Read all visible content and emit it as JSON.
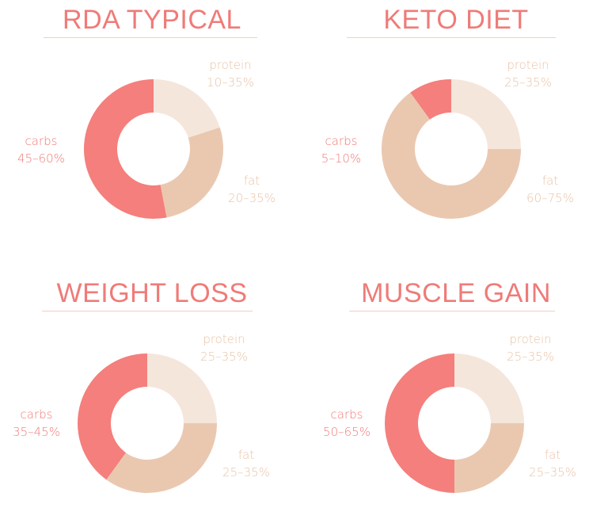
{
  "colors": {
    "title": "#ef7b78",
    "rule": "#f4cdbf",
    "protein": "#f5e6dc",
    "fat": "#eac8b0",
    "carbs": "#f47f7c",
    "protein_text": "#e9c3a6",
    "fat_text": "#e9c3a6",
    "carbs_text": "#ef7b78"
  },
  "chart_data": [
    {
      "type": "pie",
      "title": "RDA TYPICAL",
      "labels": [
        "protein",
        "fat",
        "carbs"
      ],
      "ranges": [
        "10–35%",
        "20–35%",
        "45–60%"
      ],
      "values": [
        20,
        27,
        53
      ]
    },
    {
      "type": "pie",
      "title": "KETO DIET",
      "labels": [
        "protein",
        "fat",
        "carbs"
      ],
      "ranges": [
        "25–35%",
        "60–75%",
        "5–10%"
      ],
      "values": [
        25,
        65,
        10
      ]
    },
    {
      "type": "pie",
      "title": "WEIGHT LOSS",
      "labels": [
        "protein",
        "fat",
        "carbs"
      ],
      "ranges": [
        "25–35%",
        "25–35%",
        "35–45%"
      ],
      "values": [
        25,
        35,
        40
      ]
    },
    {
      "type": "pie",
      "title": "MUSCLE GAIN",
      "labels": [
        "protein",
        "fat",
        "carbs"
      ],
      "ranges": [
        "25–35%",
        "25–35%",
        "50–65%"
      ],
      "values": [
        25,
        25,
        50
      ]
    }
  ]
}
